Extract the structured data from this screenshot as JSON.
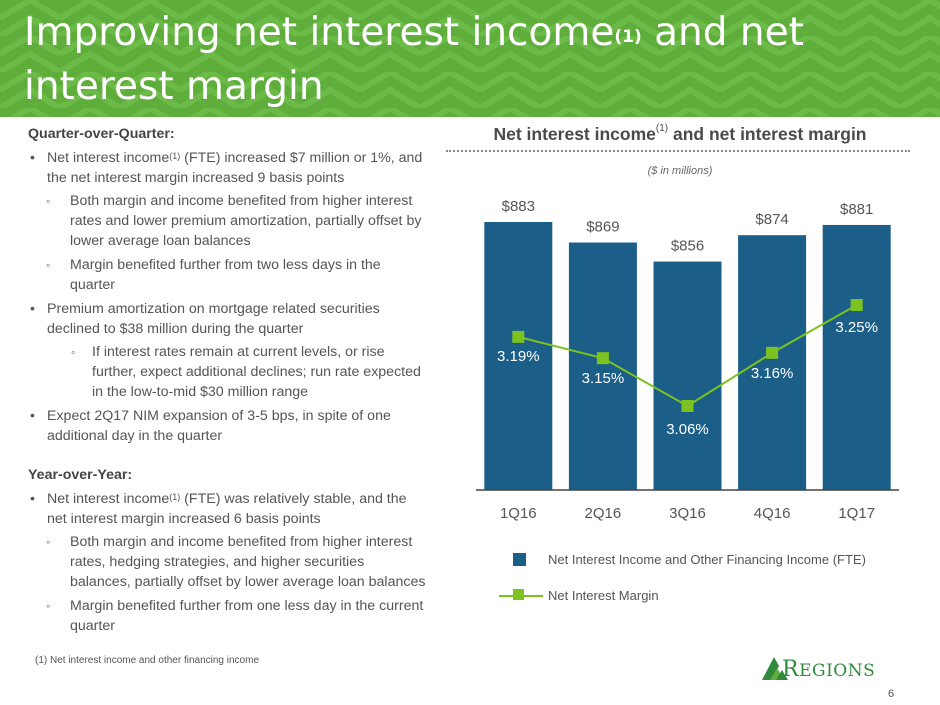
{
  "slide": {
    "title_part1": "Improving net interest income",
    "title_sup": "(1)",
    "title_part2": " and net interest margin",
    "page_number": "6",
    "footnote": "(1) Net interest income and other financing income",
    "logo_initial": "R",
    "logo_rest": "EGIONS"
  },
  "left": {
    "qoq_heading": "Quarter-over-Quarter:",
    "qoq_b1_a": "Net interest income",
    "qoq_b1_sup": "(1)",
    "qoq_b1_b": " (FTE) increased $7 million or 1%, and the net interest margin increased 9 basis points",
    "qoq_b1_s1": "Both margin and income benefited from higher interest rates and lower premium amortization, partially offset by lower average loan balances",
    "qoq_b1_s2": "Margin benefited further from two less days in the quarter",
    "qoq_b2": "Premium amortization on mortgage related securities declined to $38 million during the quarter",
    "qoq_b2_s1": "If interest rates remain at current levels, or rise further, expect additional declines; run rate expected in the low-to-mid $30 million range",
    "qoq_b3": "Expect 2Q17 NIM expansion of 3-5 bps, in spite of one additional day in the quarter",
    "yoy_heading": "Year-over-Year:",
    "yoy_b1_a": "Net interest income",
    "yoy_b1_sup": "(1)",
    "yoy_b1_b": " (FTE) was relatively stable, and the net interest margin increased 6 basis points",
    "yoy_b1_s1": "Both margin and income benefited from higher interest rates, hedging strategies, and higher securities balances, partially offset by lower average loan balances",
    "yoy_b1_s2": "Margin benefited further from one less day in the current quarter"
  },
  "chart_data": {
    "type": "bar",
    "title_main": "Net interest income",
    "title_sup": "(1)",
    "title_rest": " and net interest margin",
    "units": "($ in millions)",
    "categories": [
      "1Q16",
      "2Q16",
      "3Q16",
      "4Q16",
      "1Q17"
    ],
    "series": [
      {
        "name": "Net Interest Income and Other Financing Income (FTE)",
        "type": "bar",
        "values": [
          883,
          869,
          856,
          874,
          881
        ],
        "labels": [
          "$883",
          "$869",
          "$856",
          "$874",
          "$881"
        ],
        "color": "#1b5f88"
      },
      {
        "name": "Net Interest Margin",
        "type": "line",
        "values": [
          3.19,
          3.15,
          3.06,
          3.16,
          3.25
        ],
        "labels": [
          "3.19%",
          "3.15%",
          "3.06%",
          "3.16%",
          "3.25%"
        ],
        "color": "#7cc221"
      }
    ],
    "bar_ylim": [
      700,
      900
    ],
    "line_ylim": [
      2.9,
      3.35
    ],
    "legend_position": "bottom"
  },
  "colors": {
    "header_green": "#5fad3a",
    "bar_blue": "#1b5f88",
    "line_green": "#7cc221",
    "logo_green": "#2f8a3c"
  }
}
